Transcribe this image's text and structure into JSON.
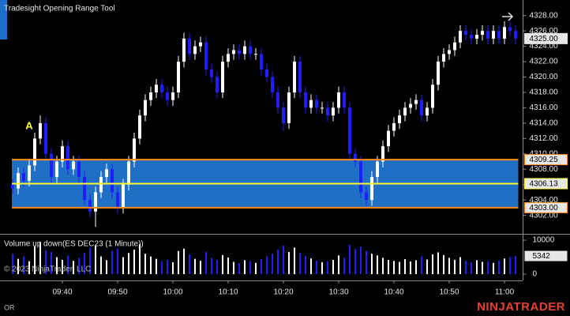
{
  "chart_data": {
    "type": "candlestick",
    "title": "Tradesight Opening Range Tool",
    "annotation": "A",
    "copyright": "© 2023 NinjaTrader, LLC",
    "footer_left": "OR",
    "brand": "NINJATRADER",
    "up_color": "#ffffff",
    "down_color": "#1e1eff",
    "range_box_color": "#1f6fc4",
    "range_edge_color": "#ff8c1a",
    "range_mid_color": "#ffff33",
    "categories": [
      "",
      "",
      "",
      "",
      "",
      "",
      "",
      "",
      "",
      "09:40",
      "",
      "",
      "",
      "",
      "",
      "",
      "",
      "",
      "",
      "09:50",
      "",
      "",
      "",
      "",
      "",
      "",
      "",
      "",
      "",
      "10:00",
      "",
      "",
      "",
      "",
      "",
      "",
      "",
      "",
      "",
      "10:10",
      "",
      "",
      "",
      "",
      "",
      "",
      "",
      "",
      "",
      "10:20",
      "",
      "",
      "",
      "",
      "",
      "",
      "",
      "",
      "",
      "10:30",
      "",
      "",
      "",
      "",
      "",
      "",
      "",
      "",
      "",
      "10:40",
      "",
      "",
      "",
      "",
      "",
      "",
      "",
      "",
      "",
      "10:50",
      "",
      "",
      "",
      "",
      "",
      "",
      "",
      "",
      "",
      "11:00",
      "",
      ""
    ],
    "open": [
      4306,
      4305.5,
      4307.5,
      4306.5,
      4308.5,
      4312,
      4314,
      4310,
      4307,
      4309,
      4311,
      4308,
      4309,
      4307,
      4304,
      4302.5,
      4305,
      4307,
      4308,
      4305,
      4303,
      4306,
      4309,
      4312,
      4315,
      4317,
      4318,
      4319,
      4318,
      4317,
      4318,
      4322,
      4325,
      4323,
      4324,
      4324.5,
      4321,
      4320,
      4318,
      4322,
      4323,
      4323.5,
      4323,
      4324,
      4323,
      4323,
      4321,
      4320,
      4318,
      4316,
      4314,
      4318,
      4322,
      4318,
      4316,
      4317,
      4316,
      4316,
      4315,
      4316,
      4318,
      4316,
      4310,
      4309,
      4305,
      4304,
      4307,
      4309,
      4311,
      4313,
      4314,
      4315,
      4316,
      4316.5,
      4317,
      4315,
      4316,
      4319,
      4322,
      4323,
      4323.5,
      4324.5,
      4326,
      4325.5,
      4325,
      4325.5,
      4326,
      4325,
      4326,
      4325,
      4326.5,
      4326
    ],
    "high": [
      4306.75,
      4308.25,
      4308.25,
      4309.25,
      4312.75,
      4315,
      4314.75,
      4310.75,
      4309.75,
      4311.75,
      4311.75,
      4309.75,
      4309.75,
      4307.75,
      4304.75,
      4305.75,
      4307.75,
      4308.75,
      4308.75,
      4305.75,
      4306.75,
      4309.75,
      4312.75,
      4315.75,
      4317.75,
      4318.75,
      4319.75,
      4319.75,
      4318.75,
      4318.75,
      4322.75,
      4325.75,
      4325.75,
      4324.75,
      4325.25,
      4325.25,
      4321.75,
      4320.75,
      4322.75,
      4323.75,
      4324.25,
      4324.25,
      4324.75,
      4324.75,
      4323.75,
      4323.75,
      4321.75,
      4320.75,
      4318.75,
      4316.75,
      4318.75,
      4322.75,
      4322.75,
      4318.75,
      4317.75,
      4317.75,
      4316.75,
      4316.75,
      4316.75,
      4318.75,
      4318.75,
      4316.75,
      4310.75,
      4309.75,
      4305.75,
      4307.75,
      4309.75,
      4311.75,
      4313.75,
      4314.75,
      4315.75,
      4316.75,
      4317.25,
      4317.75,
      4317.75,
      4316.75,
      4319.75,
      4322.75,
      4323.75,
      4324.25,
      4325.25,
      4326.75,
      4326.75,
      4326.25,
      4326.25,
      4326.75,
      4326.75,
      4326.75,
      4326.75,
      4327.25,
      4327.25,
      4326.75
    ],
    "low": [
      4304.75,
      4304.75,
      4305.75,
      4305.75,
      4307.75,
      4311.25,
      4309.25,
      4306.25,
      4306.25,
      4308.25,
      4307.25,
      4307.25,
      4306.25,
      4303.25,
      4301.75,
      4300.5,
      4304.25,
      4306.25,
      4304.25,
      4302.25,
      4302.25,
      4305.25,
      4308.25,
      4311.25,
      4314.25,
      4316.25,
      4317.25,
      4317.25,
      4316.25,
      4316.25,
      4317.25,
      4321.25,
      4322.25,
      4322.25,
      4323.25,
      4320.25,
      4319.25,
      4317.25,
      4317.25,
      4321.25,
      4322.25,
      4322.25,
      4322.25,
      4322.25,
      4322.25,
      4320.25,
      4319.25,
      4317.25,
      4315.25,
      4313,
      4313.25,
      4317.25,
      4317.25,
      4315.25,
      4315.25,
      4315.25,
      4315.25,
      4314.25,
      4314.25,
      4315.25,
      4315.25,
      4309.25,
      4308.25,
      4304.25,
      4303.25,
      4303.25,
      4306.25,
      4308.25,
      4310.25,
      4312.25,
      4313.25,
      4314.25,
      4315.25,
      4315.75,
      4314.25,
      4314.25,
      4315.25,
      4318.25,
      4321.25,
      4322.25,
      4322.75,
      4323.75,
      4324.75,
      4324.25,
      4324.25,
      4324.75,
      4324.25,
      4324.25,
      4324.25,
      4324.25,
      4325.25,
      4324.25
    ],
    "close": [
      4305.5,
      4307.5,
      4306.5,
      4308.5,
      4312,
      4314,
      4310,
      4307,
      4309,
      4311,
      4308,
      4309,
      4307,
      4304,
      4302.5,
      4305,
      4307,
      4308,
      4305,
      4303,
      4306,
      4309,
      4312,
      4315,
      4317,
      4318,
      4319,
      4318,
      4317,
      4318,
      4322,
      4325,
      4323,
      4324,
      4324.5,
      4321,
      4320,
      4318,
      4322,
      4323,
      4323.5,
      4323,
      4324,
      4323,
      4323,
      4321,
      4320,
      4318,
      4316,
      4314,
      4318,
      4322,
      4318,
      4316,
      4317,
      4316,
      4316,
      4315,
      4316,
      4318,
      4316,
      4310,
      4309,
      4305,
      4304,
      4307,
      4309,
      4311,
      4313,
      4314,
      4315,
      4316,
      4316.5,
      4317,
      4315,
      4316,
      4319,
      4322,
      4323,
      4323.5,
      4324.5,
      4326,
      4325.5,
      4325,
      4325.5,
      4326,
      4325,
      4326,
      4325,
      4326.5,
      4326,
      4325
    ],
    "last_price_label": "4325.00",
    "ylim": [
      4299.7,
      4329.2
    ],
    "yticks": [
      {
        "value": 4302,
        "label": "4302.00"
      },
      {
        "value": 4304,
        "label": "4304.00"
      },
      {
        "value": 4306,
        "label": "4306.00"
      },
      {
        "value": 4308,
        "label": "4308.00"
      },
      {
        "value": 4310,
        "label": "4310.00"
      },
      {
        "value": 4312,
        "label": "4312.00"
      },
      {
        "value": 4314,
        "label": "4314.00"
      },
      {
        "value": 4316,
        "label": "4316.00"
      },
      {
        "value": 4318,
        "label": "4318.00"
      },
      {
        "value": 4320,
        "label": "4320.00"
      },
      {
        "value": 4322,
        "label": "4322.00"
      },
      {
        "value": 4324,
        "label": "4324.00"
      },
      {
        "value": 4326,
        "label": "4326.00"
      },
      {
        "value": 4328,
        "label": "4328.00"
      }
    ],
    "opening_range": {
      "high": {
        "value": 4309.25,
        "label": "4309.25"
      },
      "mid": {
        "value": 4306.13,
        "label": "4306.13"
      },
      "low": {
        "value": 4303,
        "label": "4303.00"
      }
    },
    "volume_title": "Volume up down(ES DEC23 (1 Minute))",
    "volume": [
      6000,
      4500,
      5200,
      3800,
      8200,
      9500,
      7000,
      6500,
      5000,
      4200,
      5500,
      3900,
      4800,
      6200,
      7800,
      8500,
      5200,
      4100,
      6800,
      7500,
      5000,
      6200,
      7200,
      8800,
      6000,
      5200,
      4500,
      3800,
      4200,
      3500,
      6800,
      7500,
      5800,
      4500,
      3900,
      6500,
      4800,
      4200,
      5600,
      4900,
      3600,
      3200,
      4100,
      3800,
      3300,
      4500,
      5200,
      6000,
      7200,
      8400,
      6500,
      7800,
      6200,
      5400,
      4600,
      4000,
      3500,
      3800,
      4200,
      5500,
      4800,
      8600,
      7400,
      8200,
      6800,
      6000,
      5500,
      4800,
      4200,
      3900,
      3600,
      4400,
      3700,
      4100,
      5200,
      4300,
      5800,
      6400,
      5600,
      4800,
      4200,
      5000,
      3900,
      3500,
      4100,
      3600,
      3800,
      3300,
      4000,
      4600,
      5000,
      5342
    ],
    "vlim": [
      0,
      11400
    ],
    "vticks": [
      0,
      10000
    ]
  }
}
